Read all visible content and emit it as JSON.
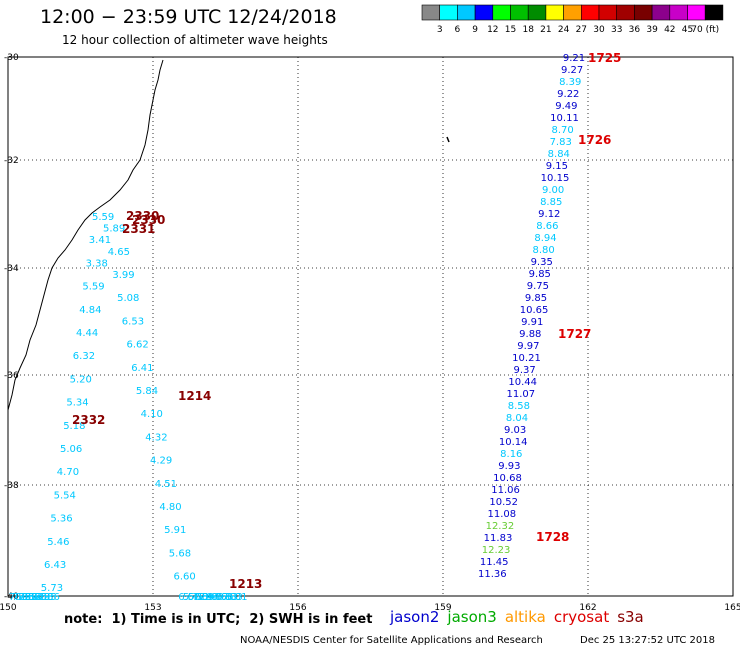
{
  "title": "12:00 − 23:59 UTC 12/24/2018",
  "subtitle": "12 hour collection of altimeter wave heights",
  "note": "note:  1) Time is in UTC;  2) SWH is in feet",
  "credit": "NOAA/NESDIS Center for Satellite Applications and Research",
  "stamp": "Dec 25 13:27:52 UTC 2018",
  "legend": {
    "colors": [
      "#888888",
      "#00ffff",
      "#00c8ff",
      "#0000ff",
      "#00ff00",
      "#00c000",
      "#008c00",
      "#ffff00",
      "#ffa000",
      "#ff0000",
      "#d20000",
      "#a00000",
      "#780000",
      "#8c008c",
      "#c800c8",
      "#ff00ff",
      "#000000"
    ],
    "labels": [
      "3",
      "6",
      "9",
      "12",
      "15",
      "18",
      "21",
      "24",
      "27",
      "30",
      "33",
      "36",
      "39",
      "42",
      "45",
      "70 (ft)"
    ]
  },
  "satellites": [
    {
      "name": "jason2",
      "color": "#0000cc"
    },
    {
      "name": "jason3",
      "color": "#00aa00"
    },
    {
      "name": "altika",
      "color": "#ff9900"
    },
    {
      "name": "cryosat",
      "color": "#dd0000"
    },
    {
      "name": "s3a",
      "color": "#880000"
    }
  ],
  "map": {
    "lon_range": [
      150,
      165
    ],
    "lat_range": [
      -30,
      -40
    ],
    "lon_ticks": [
      "150",
      "153",
      "156",
      "159",
      "162",
      "165"
    ],
    "lat_ticks": [
      "-30",
      "-32",
      "-34",
      "-36",
      "-38",
      "-40"
    ]
  },
  "track_west": {
    "color": "#00c8ff",
    "values": [
      "5.59",
      "5.89",
      "3.41",
      "4.65",
      "3.38",
      "3.99",
      "5.59",
      "5.08",
      "4.84",
      "6.53",
      "4.44",
      "6.62",
      "6.32",
      "6.41",
      "5.20",
      "5.84",
      "5.34",
      "4.10",
      "5.18",
      "4.32",
      "5.06",
      "4.29",
      "4.70",
      "4.51",
      "5.54",
      "4.80",
      "5.36",
      "5.91",
      "5.46",
      "5.68",
      "6.43",
      "6.60",
      "5.73",
      "6.56",
      "7.36",
      "5.72",
      "6.95",
      "6.11",
      "6.58",
      "4.89",
      "5.48",
      "5.94",
      "5.75",
      "5.80",
      "6.95",
      "4.57",
      "7.36",
      "6.66",
      "6.97",
      "7.53",
      "7.96",
      "6.83",
      "7.86",
      "8.01"
    ]
  },
  "track_west_times": [
    {
      "t": "2330",
      "color": "#880000"
    },
    {
      "t": "2330",
      "color": "#880000"
    },
    {
      "t": "2331",
      "color": "#880000"
    },
    {
      "t": "1214",
      "color": "#880000"
    },
    {
      "t": "2332",
      "color": "#880000"
    },
    {
      "t": "1213",
      "color": "#880000"
    }
  ],
  "track_east": {
    "values": [
      {
        "v": "9.21",
        "c": "#0000cc"
      },
      {
        "v": "9.27",
        "c": "#0000cc"
      },
      {
        "v": "8.39",
        "c": "#00c8ff"
      },
      {
        "v": "9.22",
        "c": "#0000cc"
      },
      {
        "v": "9.49",
        "c": "#0000cc"
      },
      {
        "v": "10.11",
        "c": "#0000cc"
      },
      {
        "v": "8.70",
        "c": "#00c8ff"
      },
      {
        "v": "7.83",
        "c": "#00c8ff"
      },
      {
        "v": "8.84",
        "c": "#00c8ff"
      },
      {
        "v": "9.15",
        "c": "#0000cc"
      },
      {
        "v": "10.15",
        "c": "#0000cc"
      },
      {
        "v": "9.00",
        "c": "#00c8ff"
      },
      {
        "v": "8.85",
        "c": "#00c8ff"
      },
      {
        "v": "9.12",
        "c": "#0000cc"
      },
      {
        "v": "8.66",
        "c": "#00c8ff"
      },
      {
        "v": "8.94",
        "c": "#00c8ff"
      },
      {
        "v": "8.80",
        "c": "#00c8ff"
      },
      {
        "v": "9.35",
        "c": "#0000cc"
      },
      {
        "v": "9.85",
        "c": "#0000cc"
      },
      {
        "v": "9.75",
        "c": "#0000cc"
      },
      {
        "v": "9.85",
        "c": "#0000cc"
      },
      {
        "v": "10.65",
        "c": "#0000cc"
      },
      {
        "v": "9.91",
        "c": "#0000cc"
      },
      {
        "v": "9.88",
        "c": "#0000cc"
      },
      {
        "v": "9.97",
        "c": "#0000cc"
      },
      {
        "v": "10.21",
        "c": "#0000cc"
      },
      {
        "v": "9.37",
        "c": "#0000cc"
      },
      {
        "v": "10.44",
        "c": "#0000cc"
      },
      {
        "v": "11.07",
        "c": "#0000cc"
      },
      {
        "v": "8.58",
        "c": "#00c8ff"
      },
      {
        "v": "8.04",
        "c": "#00c8ff"
      },
      {
        "v": "9.03",
        "c": "#0000cc"
      },
      {
        "v": "10.14",
        "c": "#0000cc"
      },
      {
        "v": "8.16",
        "c": "#00c8ff"
      },
      {
        "v": "9.93",
        "c": "#0000cc"
      },
      {
        "v": "10.68",
        "c": "#0000cc"
      },
      {
        "v": "11.06",
        "c": "#0000cc"
      },
      {
        "v": "10.52",
        "c": "#0000cc"
      },
      {
        "v": "11.08",
        "c": "#0000cc"
      },
      {
        "v": "12.32",
        "c": "#66cc33"
      },
      {
        "v": "11.83",
        "c": "#0000cc"
      },
      {
        "v": "12.23",
        "c": "#66cc33"
      },
      {
        "v": "11.45",
        "c": "#0000cc"
      },
      {
        "v": "11.36",
        "c": "#0000cc"
      }
    ]
  },
  "track_east_times": [
    {
      "t": "1725",
      "color": "#dd0000"
    },
    {
      "t": "1726",
      "color": "#dd0000"
    },
    {
      "t": "1727",
      "color": "#dd0000"
    },
    {
      "t": "1728",
      "color": "#dd0000"
    }
  ]
}
